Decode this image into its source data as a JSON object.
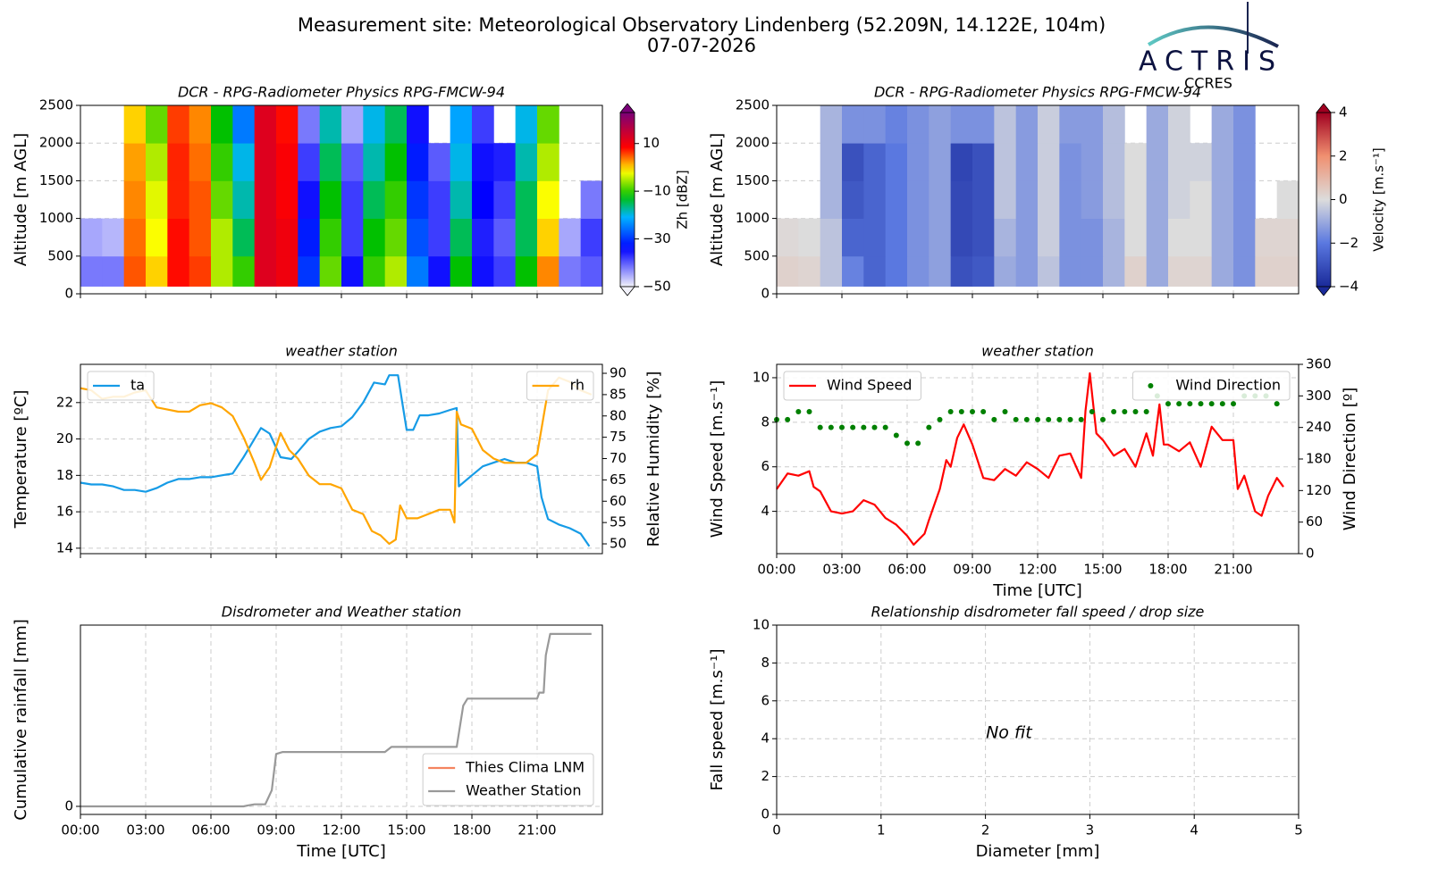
{
  "header": {
    "title": "Measurement site: Meteorological Observatory Lindenberg (52.209N, 14.122E, 104m)",
    "date": "07-07-2026"
  },
  "logo": {
    "name": "ACTRIS",
    "sub": "CCRES"
  },
  "chart_data": [
    {
      "type": "heatmap",
      "title": "DCR - RPG-Radiometer Physics RPG-FMCW-94",
      "ylabel": "Altitude [m AGL]",
      "xlim": [
        0,
        24
      ],
      "xticks": [
        0,
        3,
        6,
        9,
        12,
        15,
        18,
        21
      ],
      "xtick_labels": false,
      "ylim": [
        0,
        2500
      ],
      "yticks": [
        0,
        500,
        1000,
        1500,
        2000,
        2500
      ],
      "grid": true,
      "x_edges": [
        0,
        1,
        2,
        3,
        4,
        5,
        6,
        7,
        8,
        9,
        10,
        11,
        12,
        13,
        14,
        15,
        16,
        17,
        18,
        19,
        20,
        21,
        22,
        23,
        24
      ],
      "y_edges": [
        100,
        500,
        1000,
        1500,
        2000,
        2500
      ],
      "z": [
        [
          -42,
          -42,
          5,
          0,
          8,
          6,
          -5,
          -10,
          12,
          10,
          -30,
          -8,
          -35,
          -10,
          -5,
          -25,
          -35,
          -12,
          -35,
          -38,
          -12,
          3,
          -42,
          -40
        ],
        [
          -45,
          -46,
          4,
          -2,
          8,
          5,
          -5,
          -15,
          12,
          10,
          -32,
          -10,
          -38,
          -12,
          -8,
          -28,
          -38,
          -15,
          -36,
          -40,
          -15,
          0,
          -45,
          -38
        ],
        [
          null,
          null,
          3,
          -3,
          7,
          5,
          -8,
          -18,
          12,
          9,
          -35,
          -12,
          -38,
          -15,
          -10,
          -30,
          -38,
          -18,
          -34,
          -38,
          -15,
          -2,
          null,
          -42
        ],
        [
          null,
          null,
          2,
          -5,
          7,
          4,
          -10,
          -20,
          12,
          9,
          -38,
          -15,
          -40,
          -18,
          -12,
          -32,
          -40,
          -20,
          -35,
          -36,
          -18,
          -5,
          null,
          null
        ],
        [
          null,
          null,
          0,
          -8,
          6,
          3,
          -12,
          -25,
          12,
          8,
          -42,
          -18,
          -45,
          -20,
          -15,
          -35,
          null,
          -22,
          -38,
          null,
          -20,
          -8,
          null,
          null
        ]
      ],
      "colorbar": {
        "label": "Zh [dBZ]",
        "colormap": "jet",
        "lim": [
          -50,
          23
        ],
        "ticks": [
          {
            "value": 10,
            "label": "10"
          },
          {
            "value": -10,
            "label": "−10"
          },
          {
            "value": -30,
            "label": "−30"
          },
          {
            "value": -50,
            "label": "−50"
          }
        ]
      }
    },
    {
      "type": "heatmap",
      "title": "DCR - RPG-Radiometer Physics RPG-FMCW-94",
      "ylabel": "Altitude [m AGL]",
      "xlim": [
        0,
        24
      ],
      "xticks": [
        0,
        3,
        6,
        9,
        12,
        15,
        18,
        21
      ],
      "xtick_labels": false,
      "ylim": [
        0,
        2500
      ],
      "yticks": [
        0,
        500,
        1000,
        1500,
        2000,
        2500
      ],
      "grid": true,
      "x_edges": [
        0,
        1,
        2,
        3,
        4,
        5,
        6,
        7,
        8,
        9,
        10,
        11,
        12,
        13,
        14,
        15,
        16,
        17,
        18,
        19,
        20,
        21,
        22,
        23,
        24
      ],
      "y_edges": [
        100,
        500,
        1000,
        1500,
        2000,
        2500
      ],
      "z": [
        [
          0.3,
          0.2,
          -0.5,
          -1.8,
          -2.5,
          -2,
          -1.5,
          -1.2,
          -3,
          -2.8,
          -1,
          -1.3,
          -0.5,
          -1.5,
          -1.5,
          -0.8,
          0.3,
          -1,
          0.2,
          0.2,
          -1,
          -1.5,
          0.3,
          0.3
        ],
        [
          0.1,
          0,
          -0.5,
          -2.5,
          -2.5,
          -2,
          -1.5,
          -1.2,
          -3.2,
          -3,
          -0.8,
          -1.3,
          -0.3,
          -1.5,
          -1.5,
          -0.8,
          0,
          -1,
          0,
          0,
          -1,
          -1.5,
          0.2,
          0.2
        ],
        [
          null,
          null,
          -0.8,
          -2.8,
          -2.5,
          -2,
          -1.5,
          -1.2,
          -3.2,
          -3,
          -0.5,
          -1.3,
          -0.3,
          -1.5,
          -1.3,
          -0.6,
          0,
          -1,
          -0.2,
          0,
          -1,
          -1.5,
          null,
          0
        ],
        [
          null,
          null,
          -0.8,
          -3,
          -2.5,
          -2,
          -1.5,
          -1.2,
          -3.3,
          -3,
          -0.5,
          -1.3,
          -0.3,
          -1.5,
          -1.3,
          -0.6,
          0,
          -1,
          -0.2,
          -0.2,
          -1,
          -1.5,
          null,
          null
        ],
        [
          null,
          null,
          -0.8,
          -1.5,
          -1.5,
          -1.8,
          -1.5,
          -1.2,
          -1.5,
          -1.5,
          -0.5,
          -1.3,
          -0.3,
          -1.3,
          -1.3,
          -0.6,
          null,
          -1,
          -0.2,
          null,
          -1,
          -1.5,
          null,
          null
        ]
      ],
      "colorbar": {
        "label": "Velocity [m.s⁻¹]",
        "colormap": "coolwarm",
        "lim": [
          -4,
          4
        ],
        "ticks": [
          {
            "value": 4,
            "label": "4"
          },
          {
            "value": 2,
            "label": "2"
          },
          {
            "value": 0,
            "label": "0"
          },
          {
            "value": -2,
            "label": "−2"
          },
          {
            "value": -4,
            "label": "−4"
          }
        ]
      }
    },
    {
      "type": "line",
      "title": "weather station",
      "ylabel": "Temperature [ºC]",
      "y2label": "Relative Humidity [%]",
      "xlim": [
        0,
        24
      ],
      "xticks": [
        0,
        3,
        6,
        9,
        12,
        15,
        18,
        21
      ],
      "xtick_labels": false,
      "ylim": [
        13.7,
        24.1
      ],
      "yticks": [
        14,
        16,
        18,
        20,
        22
      ],
      "y2lim": [
        47.7,
        92.1
      ],
      "y2ticks": [
        50,
        55,
        60,
        65,
        70,
        75,
        80,
        85,
        90
      ],
      "grid": true,
      "series": [
        {
          "name": "ta",
          "color": "#169be6",
          "legend": "upper left",
          "x": [
            0,
            0.5,
            1,
            1.5,
            2,
            2.5,
            3,
            3.5,
            4,
            4.5,
            5,
            5.5,
            6,
            6.5,
            7,
            7.5,
            8,
            8.3,
            8.7,
            9.2,
            9.7,
            10,
            10.5,
            11,
            11.5,
            12,
            12.5,
            13,
            13.5,
            14,
            14.2,
            14.6,
            14.8,
            15,
            15.3,
            15.6,
            16,
            16.5,
            17,
            17.3,
            17.4,
            18,
            18.5,
            19,
            19.5,
            20,
            20.5,
            21,
            21.2,
            21.4,
            21.5,
            22,
            22.5,
            23,
            23.4
          ],
          "values": [
            17.6,
            17.5,
            17.5,
            17.4,
            17.2,
            17.2,
            17.1,
            17.3,
            17.6,
            17.8,
            17.8,
            17.9,
            17.9,
            18.0,
            18.1,
            19.0,
            20.0,
            20.6,
            20.3,
            19.0,
            18.9,
            19.3,
            20.0,
            20.4,
            20.6,
            20.7,
            21.2,
            22.0,
            23.1,
            23.0,
            23.5,
            23.5,
            22.0,
            20.5,
            20.5,
            21.3,
            21.3,
            21.4,
            21.6,
            21.7,
            17.4,
            18.0,
            18.5,
            18.7,
            18.9,
            18.7,
            18.7,
            18.5,
            16.8,
            16.0,
            15.6,
            15.3,
            15.1,
            14.8,
            14.1
          ]
        },
        {
          "name": "rh",
          "color": "#ffa500",
          "axis": "y2",
          "legend": "upper right",
          "x": [
            0,
            0.5,
            1,
            1.5,
            2,
            2.5,
            3,
            3.5,
            4,
            4.5,
            5,
            5.5,
            6,
            6.5,
            7,
            7.5,
            8,
            8.3,
            8.7,
            9.2,
            9.6,
            10,
            10.5,
            11,
            11.5,
            12,
            12.5,
            13,
            13.4,
            13.8,
            14.2,
            14.5,
            14.7,
            15,
            15.5,
            16,
            16.5,
            17,
            17.2,
            17.3,
            17.5,
            18,
            18.5,
            19,
            19.5,
            20,
            20.5,
            21,
            21.3,
            21.5,
            22,
            22.5,
            23,
            23.5
          ],
          "values": [
            86.5,
            86,
            84,
            84.5,
            84.5,
            85.5,
            86,
            82,
            81.5,
            81,
            81,
            82.5,
            83,
            82,
            80,
            75,
            69,
            65,
            68,
            76,
            72,
            70,
            66,
            64,
            64,
            63,
            58,
            57,
            53,
            52,
            50,
            51,
            59,
            56,
            56,
            57,
            58,
            58,
            55,
            81,
            78,
            77,
            72,
            70,
            69,
            69,
            69,
            71,
            80,
            86,
            89,
            88,
            86,
            85
          ]
        }
      ]
    },
    {
      "type": "line",
      "title": "weather station",
      "ylabel": "Wind Speed [m.s⁻¹]",
      "y2label": "Wind Direction [º]",
      "xlabel": "Time [UTC]",
      "xlim": [
        0,
        24
      ],
      "xticks": [
        {
          "value": 0,
          "label": "00:00"
        },
        {
          "value": 3,
          "label": "03:00"
        },
        {
          "value": 6,
          "label": "06:00"
        },
        {
          "value": 9,
          "label": "09:00"
        },
        {
          "value": 12,
          "label": "12:00"
        },
        {
          "value": 15,
          "label": "15:00"
        },
        {
          "value": 18,
          "label": "18:00"
        },
        {
          "value": 21,
          "label": "21:00"
        }
      ],
      "ylim": [
        2.1,
        10.6
      ],
      "yticks": [
        4,
        6,
        8,
        10
      ],
      "y2lim": [
        0,
        360
      ],
      "y2ticks": [
        0,
        60,
        120,
        180,
        240,
        300,
        360
      ],
      "grid": true,
      "series": [
        {
          "name": "Wind Speed",
          "color": "#ff0000",
          "legend": "upper left",
          "x": [
            0,
            0.5,
            1,
            1.5,
            1.7,
            2,
            2.5,
            3,
            3.5,
            4,
            4.5,
            5,
            5.5,
            6,
            6.3,
            6.8,
            7,
            7.5,
            7.8,
            8,
            8.3,
            8.6,
            9,
            9.5,
            10,
            10.5,
            11,
            11.5,
            12,
            12.5,
            13,
            13.5,
            14,
            14.2,
            14.4,
            14.7,
            15,
            15.5,
            16,
            16.5,
            17,
            17.3,
            17.6,
            17.8,
            18,
            18.5,
            19,
            19.5,
            20,
            20.5,
            21,
            21.2,
            21.5,
            22,
            22.3,
            22.6,
            23,
            23.3
          ],
          "values": [
            5.0,
            5.7,
            5.6,
            5.8,
            5.1,
            4.9,
            4.0,
            3.9,
            4.0,
            4.5,
            4.3,
            3.7,
            3.4,
            2.9,
            2.5,
            3.0,
            3.6,
            5.0,
            6.3,
            6.0,
            7.3,
            7.9,
            7.0,
            5.5,
            5.4,
            5.9,
            5.6,
            6.2,
            5.9,
            5.5,
            6.5,
            6.6,
            5.5,
            8.5,
            10.2,
            7.5,
            7.2,
            6.5,
            6.8,
            6.0,
            7.5,
            6.5,
            8.8,
            7.0,
            7.0,
            6.7,
            7.1,
            6.0,
            7.8,
            7.2,
            7.2,
            5.0,
            5.6,
            4.0,
            3.8,
            4.7,
            5.5,
            5.1
          ]
        },
        {
          "name": "Wind Direction",
          "color": "#008000",
          "axis": "y2",
          "style": "points",
          "legend": "upper right",
          "x": [
            0,
            0.5,
            1,
            1.5,
            2,
            2.5,
            3,
            3.5,
            4,
            4.5,
            5,
            5.5,
            6,
            6.5,
            7,
            7.5,
            8,
            8.5,
            9,
            9.5,
            10,
            10.5,
            11,
            11.5,
            12,
            12.5,
            13,
            13.5,
            14,
            14.5,
            15,
            15.5,
            16,
            16.5,
            17,
            17.5,
            18,
            18.5,
            19,
            19.5,
            20,
            20.5,
            21,
            21.5,
            22,
            22.5,
            23
          ],
          "values": [
            255,
            255,
            270,
            270,
            240,
            240,
            240,
            240,
            240,
            240,
            240,
            225,
            210,
            210,
            240,
            255,
            270,
            270,
            270,
            270,
            255,
            270,
            255,
            255,
            255,
            255,
            255,
            255,
            255,
            270,
            255,
            270,
            270,
            270,
            270,
            300,
            285,
            285,
            285,
            285,
            285,
            285,
            285,
            300,
            300,
            300,
            285
          ]
        }
      ]
    },
    {
      "type": "line",
      "title": "Disdrometer and Weather station",
      "ylabel": "Cumulative rainfall [mm]",
      "xlabel": "Time [UTC]",
      "xlim": [
        0,
        24
      ],
      "xticks": [
        {
          "value": 0,
          "label": "00:00"
        },
        {
          "value": 3,
          "label": "03:00"
        },
        {
          "value": 6,
          "label": "06:00"
        },
        {
          "value": 9,
          "label": "09:00"
        },
        {
          "value": 12,
          "label": "12:00"
        },
        {
          "value": 15,
          "label": "15:00"
        },
        {
          "value": 18,
          "label": "18:00"
        },
        {
          "value": 21,
          "label": "21:00"
        }
      ],
      "ylim": [
        -0.4,
        9.0
      ],
      "yticks": [
        0
      ],
      "grid": true,
      "legend": "lower right",
      "series": [
        {
          "name": "Thies Clima LNM",
          "color": "#f4845f",
          "x": [],
          "values": []
        },
        {
          "name": "Weather Station",
          "color": "#999999",
          "x": [
            0,
            7.5,
            7.7,
            8,
            8.5,
            8.8,
            9,
            9.3,
            14,
            14.3,
            17.3,
            17.6,
            17.8,
            21,
            21.1,
            21.3,
            21.4,
            21.6,
            23.5
          ],
          "values": [
            0,
            0,
            0.05,
            0.1,
            0.1,
            0.8,
            2.6,
            2.7,
            2.7,
            2.95,
            2.95,
            5.0,
            5.35,
            5.35,
            5.65,
            5.65,
            7.5,
            8.56,
            8.56
          ]
        }
      ]
    },
    {
      "type": "scatter",
      "title": "Relationship disdrometer fall speed / drop size",
      "ylabel": "Fall speed [m.s⁻¹]",
      "xlabel": "Diameter [mm]",
      "xlim": [
        0,
        5
      ],
      "xticks": [
        0,
        1,
        2,
        3,
        4,
        5
      ],
      "ylim": [
        0,
        10
      ],
      "yticks": [
        0,
        2,
        4,
        6,
        8,
        10
      ],
      "grid": true,
      "annotation": "No fit"
    }
  ]
}
